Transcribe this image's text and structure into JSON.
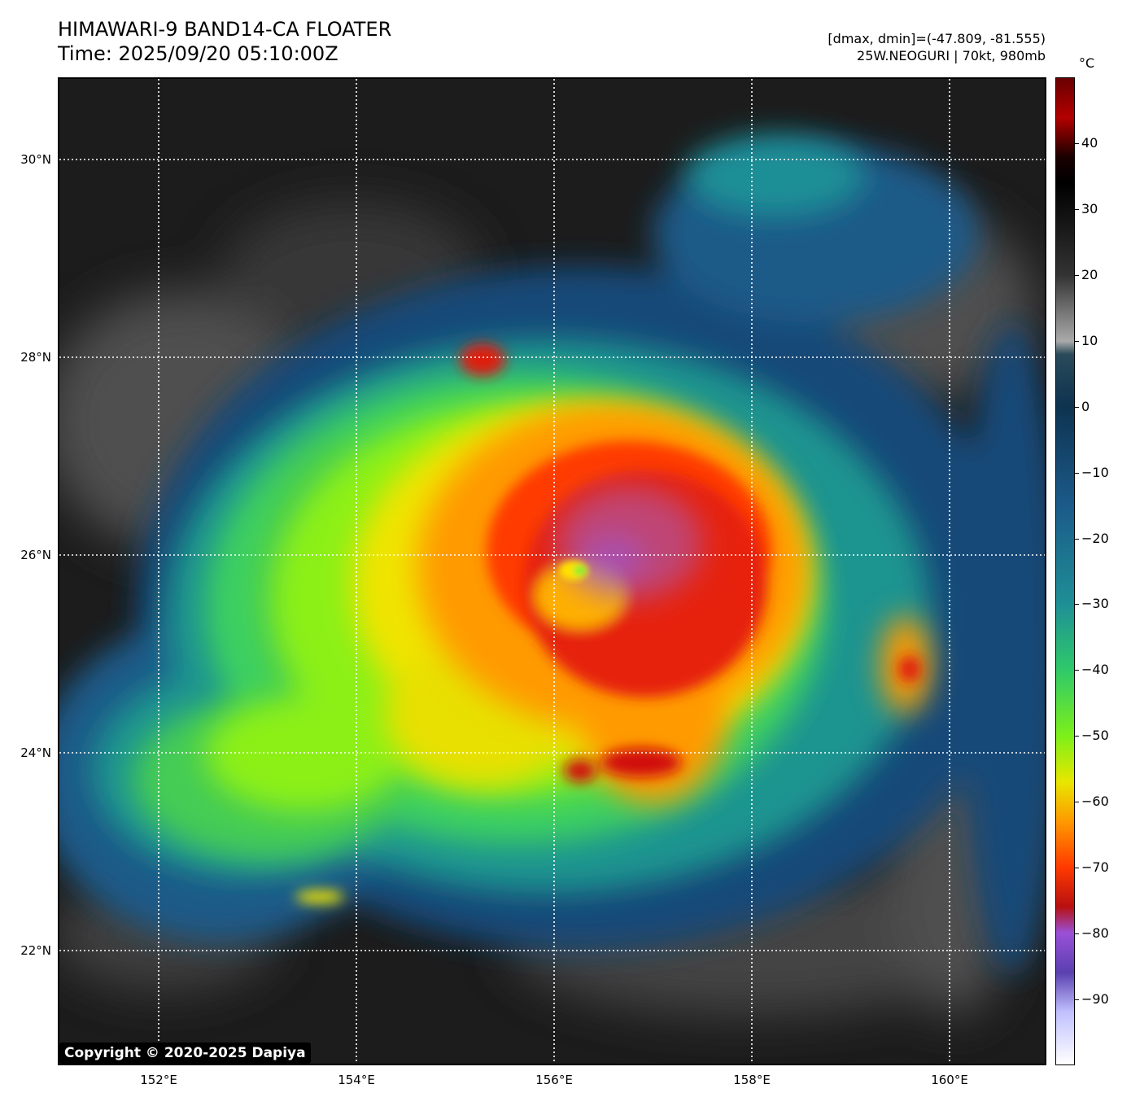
{
  "header": {
    "title_line1": "HIMAWARI-9 BAND14-CA FLOATER",
    "title_line2": "Time: 2025/09/20 05:10:00Z",
    "range_text": "[dmax, dmin]=(-47.809, -81.555)",
    "storm_text": "25W.NEOGURI | 70kt, 980mb"
  },
  "map": {
    "lat_labels": [
      "30°N",
      "28°N",
      "26°N",
      "24°N",
      "22°N"
    ],
    "lon_labels": [
      "152°E",
      "154°E",
      "156°E",
      "158°E",
      "160°E"
    ],
    "gridlines": "dotted white"
  },
  "colorbar": {
    "unit": "°C",
    "tick_labels": [
      "40",
      "30",
      "20",
      "10",
      "0",
      "−10",
      "−20",
      "−30",
      "−40",
      "−50",
      "−60",
      "−70",
      "−80",
      "−90"
    ],
    "range": [
      -100,
      50
    ],
    "stops": [
      {
        "t": 50,
        "color": "#6a0000"
      },
      {
        "t": 44,
        "color": "#b30000"
      },
      {
        "t": 38,
        "color": "#1a0000"
      },
      {
        "t": 34,
        "color": "#000000"
      },
      {
        "t": 20,
        "color": "#333333"
      },
      {
        "t": 10,
        "color": "#aaaaaa"
      },
      {
        "t": 8,
        "color": "#2a4a5a"
      },
      {
        "t": 0,
        "color": "#0e3350"
      },
      {
        "t": -15,
        "color": "#1b5a8a"
      },
      {
        "t": -30,
        "color": "#1e8f96"
      },
      {
        "t": -40,
        "color": "#2fc96a"
      },
      {
        "t": -50,
        "color": "#7cf01a"
      },
      {
        "t": -57,
        "color": "#e8e600"
      },
      {
        "t": -63,
        "color": "#ff9a00"
      },
      {
        "t": -70,
        "color": "#ff3a00"
      },
      {
        "t": -76,
        "color": "#b81010"
      },
      {
        "t": -80,
        "color": "#9a50d8"
      },
      {
        "t": -86,
        "color": "#5a40b0"
      },
      {
        "t": -92,
        "color": "#c0c0ff"
      },
      {
        "t": -100,
        "color": "#ffffff"
      }
    ]
  },
  "copyright": "Copyright © 2020-2025 Dapiya"
}
